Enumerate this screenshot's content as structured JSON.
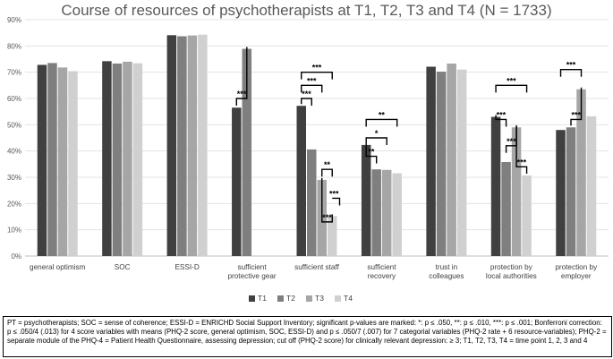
{
  "chart_data": {
    "type": "bar",
    "title": "Course of resources of psychotherapists at T1, T2, T3 and T4 (N = 1733)",
    "xlabel": "",
    "ylabel": "",
    "ylim": [
      0,
      90
    ],
    "y_ticks": [
      "0%",
      "10%",
      "20%",
      "30%",
      "40%",
      "50%",
      "60%",
      "70%",
      "80%",
      "90%"
    ],
    "categories": [
      [
        "general optimism"
      ],
      [
        "SOC"
      ],
      [
        "ESSI-D"
      ],
      [
        "sufficient",
        "protective gear"
      ],
      [
        "sufficient staff"
      ],
      [
        "sufficient",
        "recovery"
      ],
      [
        "trust in",
        "colleagues"
      ],
      [
        "protection by",
        "local authorities"
      ],
      [
        "protection by",
        "employer"
      ]
    ],
    "series": [
      {
        "name": "T1",
        "color": "#404040",
        "values": [
          72.8,
          74.2,
          84.1,
          56.5,
          57.2,
          42.3,
          72.1,
          53.0,
          48.0
        ]
      },
      {
        "name": "T2",
        "color": "#7f7f7f",
        "values": [
          73.5,
          73.3,
          83.7,
          78.9,
          40.6,
          33.0,
          70.2,
          35.8,
          49.0
        ]
      },
      {
        "name": "T3",
        "color": "#a6a6a6",
        "values": [
          71.8,
          74.0,
          84.0,
          null,
          29.0,
          32.8,
          73.3,
          49.0,
          63.5
        ]
      },
      {
        "name": "T4",
        "color": "#d0d0d0",
        "values": [
          70.4,
          73.4,
          84.3,
          null,
          15.2,
          31.5,
          71.0,
          30.7,
          53.2
        ]
      }
    ],
    "annotations": [
      {
        "category": 3,
        "from": 0,
        "to": 1,
        "label": "***",
        "level": 60
      },
      {
        "category": 4,
        "from": 0,
        "to": 3,
        "label": "***",
        "level": 70
      },
      {
        "category": 4,
        "from": 0,
        "to": 2,
        "label": "***",
        "level": 65
      },
      {
        "category": 4,
        "from": 0,
        "to": 1,
        "label": "***",
        "level": 60
      },
      {
        "category": 4,
        "from": 2,
        "to": 3,
        "label": "**",
        "level": 33
      },
      {
        "category": 4,
        "from": 3,
        "to": 3,
        "label": "***",
        "level": 22
      },
      {
        "category": 4,
        "from": 2,
        "to": 3,
        "label": "***",
        "level": 13
      },
      {
        "category": 5,
        "from": 0,
        "to": 3,
        "label": "**",
        "level": 52
      },
      {
        "category": 5,
        "from": 0,
        "to": 2,
        "label": "*",
        "level": 45
      },
      {
        "category": 5,
        "from": 0,
        "to": 1,
        "label": "**",
        "level": 38
      },
      {
        "category": 7,
        "from": 0,
        "to": 3,
        "label": "***",
        "level": 65
      },
      {
        "category": 7,
        "from": 0,
        "to": 1,
        "label": "***",
        "level": 52
      },
      {
        "category": 7,
        "from": 1,
        "to": 2,
        "label": "***",
        "level": 42
      },
      {
        "category": 7,
        "from": 2,
        "to": 3,
        "label": "***",
        "level": 34
      },
      {
        "category": 8,
        "from": 0,
        "to": 2,
        "label": "***",
        "level": 71
      },
      {
        "category": 8,
        "from": 1,
        "to": 2,
        "label": "***",
        "level": 52
      }
    ],
    "grid": true,
    "legend": "bottom"
  },
  "footnote": "PT = psychotherapists; SOC = sense of coherence; ESSI-D = ENRICHD Social Support Inventory; significant p-values are marked: *: p ≤ .050, **: p ≤ .010, ***: p ≤ .001; Bonferroni correction: p ≤ .050/4 (.013) for 4 score variables with means (PHQ-2 score, general optimism, SOC, ESSI-D) and p ≤ .050/7 (.007) for 7 categorial variables (PHQ-2 rate + 6 resource-variables); PHQ-2 = separate module of the PHQ-4 = Patient Health Questionnaire, assessing depression; cut off (PHQ-2 score) for clinically relevant depression: ≥ 3; T1, T2, T3, T4 = time point 1, 2, 3 and 4"
}
